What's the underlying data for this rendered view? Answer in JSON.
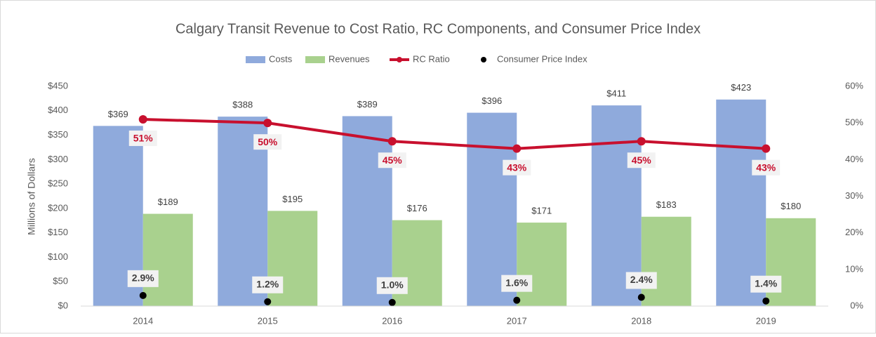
{
  "chart_data": {
    "type": "bar",
    "title": "Calgary Transit Revenue to Cost Ratio, RC Components, and Consumer Price Index",
    "y_label": "Millions of Dollars",
    "categories": [
      "2014",
      "2015",
      "2016",
      "2017",
      "2018",
      "2019"
    ],
    "series": [
      {
        "name": "Costs",
        "type": "bar",
        "color": "#8faadc",
        "values": [
          369,
          388,
          389,
          396,
          411,
          423
        ],
        "value_labels": [
          "$369",
          "$388",
          "$389",
          "$396",
          "$411",
          "$423"
        ]
      },
      {
        "name": "Revenues",
        "type": "bar",
        "color": "#a9d18e",
        "values": [
          189,
          195,
          176,
          171,
          183,
          180
        ],
        "value_labels": [
          "$189",
          "$195",
          "$176",
          "$171",
          "$183",
          "$180"
        ]
      },
      {
        "name": "RC Ratio",
        "type": "line",
        "axis": "y2",
        "color": "#c8102e",
        "values": [
          51,
          50,
          45,
          43,
          45,
          43
        ],
        "value_labels": [
          "51%",
          "50%",
          "45%",
          "43%",
          "45%",
          "43%"
        ]
      },
      {
        "name": "Consumer Price Index",
        "type": "scatter",
        "axis": "y2",
        "color": "#000000",
        "values": [
          2.9,
          1.2,
          1.0,
          1.6,
          2.4,
          1.4
        ],
        "value_labels": [
          "2.9%",
          "1.2%",
          "1.0%",
          "1.6%",
          "2.4%",
          "1.4%"
        ]
      }
    ],
    "ylim": [
      0,
      450
    ],
    "yticks": [
      {
        "value": 0,
        "label": "$0"
      },
      {
        "value": 50,
        "label": "$50"
      },
      {
        "value": 100,
        "label": "$100"
      },
      {
        "value": 150,
        "label": "$150"
      },
      {
        "value": 200,
        "label": "$200"
      },
      {
        "value": 250,
        "label": "$250"
      },
      {
        "value": 300,
        "label": "$300"
      },
      {
        "value": 350,
        "label": "$350"
      },
      {
        "value": 400,
        "label": "$400"
      },
      {
        "value": 450,
        "label": "$450"
      }
    ],
    "y2lim": [
      0,
      60
    ],
    "y2ticks": [
      {
        "value": 0,
        "label": "0%"
      },
      {
        "value": 10,
        "label": "10%"
      },
      {
        "value": 20,
        "label": "20%"
      },
      {
        "value": 30,
        "label": "30%"
      },
      {
        "value": 40,
        "label": "40%"
      },
      {
        "value": 50,
        "label": "50%"
      },
      {
        "value": 60,
        "label": "60%"
      }
    ],
    "legend": "top"
  }
}
